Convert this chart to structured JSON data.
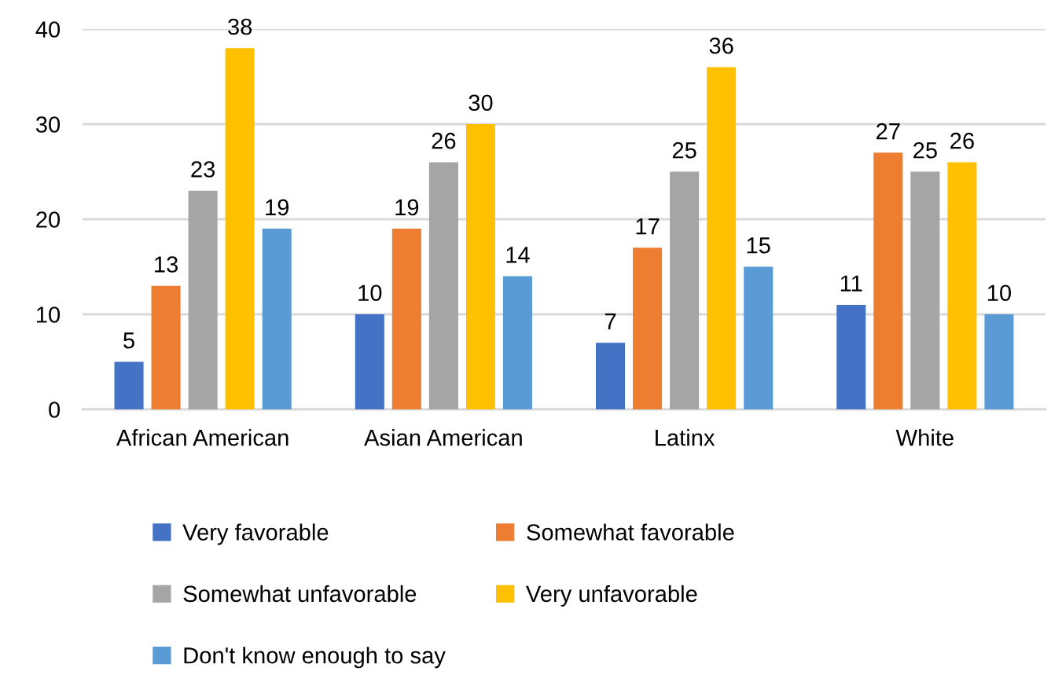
{
  "chart_data": {
    "type": "bar",
    "categories": [
      "African American",
      "Asian American",
      "Latinx",
      "White"
    ],
    "series": [
      {
        "name": "Very favorable",
        "color": "#4472c4",
        "values": [
          5,
          10,
          7,
          11
        ]
      },
      {
        "name": "Somewhat favorable",
        "color": "#ed7d31",
        "values": [
          13,
          19,
          17,
          27
        ]
      },
      {
        "name": "Somewhat unfavorable",
        "color": "#a5a5a5",
        "values": [
          23,
          26,
          25,
          25
        ]
      },
      {
        "name": "Very unfavorable",
        "color": "#ffc000",
        "values": [
          38,
          30,
          36,
          26
        ]
      },
      {
        "name": "Don't know enough to say",
        "color": "#5b9bd5",
        "values": [
          19,
          14,
          15,
          10
        ]
      }
    ],
    "ylim": [
      0,
      40
    ],
    "yticks": [
      0,
      10,
      20,
      30,
      40
    ],
    "grid": "y",
    "legend": "bottom",
    "data_labels": true
  }
}
